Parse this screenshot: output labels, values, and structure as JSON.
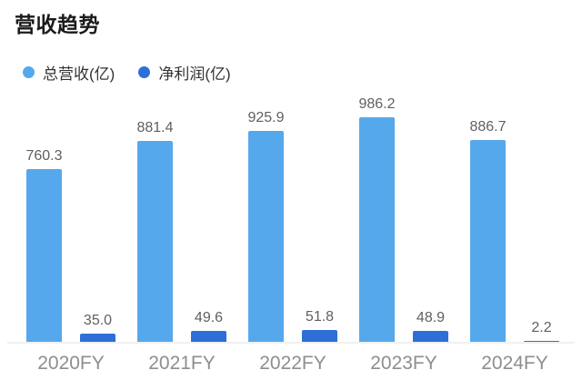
{
  "chart_data": {
    "type": "bar",
    "title": "营收趋势",
    "categories": [
      "2020FY",
      "2021FY",
      "2022FY",
      "2023FY",
      "2024FY"
    ],
    "series": [
      {
        "name": "总营收(亿)",
        "color": "#56a8ec",
        "values": [
          760.3,
          881.4,
          925.9,
          986.2,
          886.7
        ],
        "value_labels": [
          "760.3",
          "881.4",
          "925.9",
          "986.2",
          "886.7"
        ]
      },
      {
        "name": "净利润(亿)",
        "color": "#2e6fd7",
        "values": [
          35.0,
          49.6,
          51.8,
          48.9,
          2.2
        ],
        "value_labels": [
          "35.0",
          "49.6",
          "51.8",
          "48.9",
          "2.2"
        ]
      }
    ],
    "ylim": [
      0,
      1000
    ],
    "grid": false,
    "legend_position": "top-left",
    "value_labels_shown": true,
    "axis_line_color": "#f0f0f0"
  }
}
